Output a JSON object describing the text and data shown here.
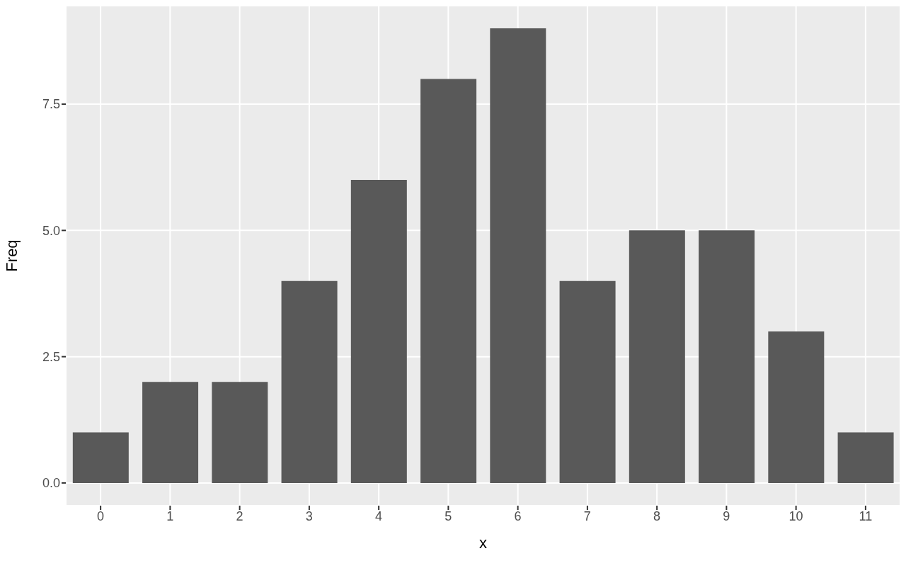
{
  "chart_data": {
    "type": "bar",
    "xlabel": "x",
    "ylabel": "Freq",
    "categories": [
      "0",
      "1",
      "2",
      "3",
      "4",
      "5",
      "6",
      "7",
      "8",
      "9",
      "10",
      "11"
    ],
    "values": [
      1,
      2,
      2,
      4,
      6,
      8,
      9,
      4,
      5,
      5,
      3,
      1
    ],
    "color": "#595959",
    "ylim": [
      -0.45,
      9.45
    ],
    "yticks": [
      {
        "value": 0,
        "label": "0.0"
      },
      {
        "value": 2.5,
        "label": "2.5"
      },
      {
        "value": 5,
        "label": "5.0"
      },
      {
        "value": 7.5,
        "label": "7.5"
      }
    ],
    "grid": true,
    "legend": false
  }
}
